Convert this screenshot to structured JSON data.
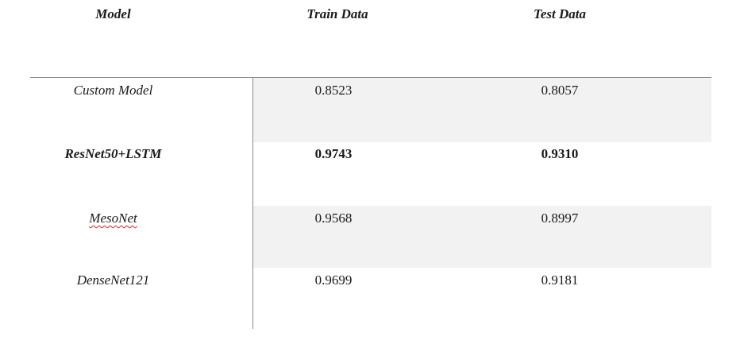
{
  "table": {
    "headers": {
      "model": "Model",
      "train": "Train Data",
      "test": "Test Data"
    },
    "rows": [
      {
        "model": "Custom Model",
        "train": "0.8523",
        "test": "0.8057",
        "bold": false,
        "shaded": true
      },
      {
        "model": "ResNet50+LSTM",
        "train": "0.9743",
        "test": "0.9310",
        "bold": true,
        "shaded": false
      },
      {
        "model": "MesoNet",
        "train": "0.9568",
        "test": "0.8997",
        "bold": false,
        "shaded": true,
        "spellcheck_underline": true
      },
      {
        "model": "DenseNet121",
        "train": "0.9699",
        "test": "0.9181",
        "bold": false,
        "shaded": false
      }
    ]
  },
  "colors": {
    "row_shade": "#f2f2f2",
    "rule": "#8a8a8a",
    "spellcheck": "#dd2222"
  }
}
